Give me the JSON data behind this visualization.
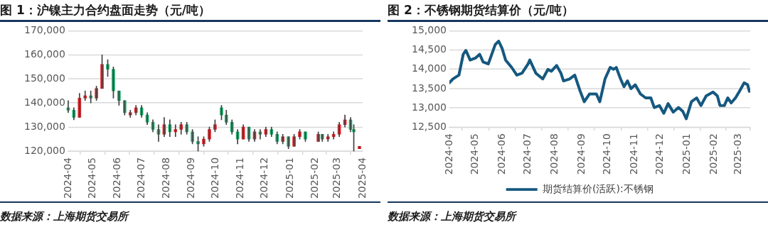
{
  "chart_data": [
    {
      "type": "candlestick",
      "title": "图 1：沪镍主力合约盘面走势（元/吨）",
      "annotations": [
        "数据来源：上海期货交易所"
      ],
      "x": [
        "2024-04-01",
        "2024-04-08",
        "2024-04-15",
        "2024-04-22",
        "2024-04-29",
        "2024-05-06",
        "2024-05-13",
        "2024-05-20",
        "2024-05-27",
        "2024-06-03",
        "2024-06-10",
        "2024-06-17",
        "2024-06-24",
        "2024-07-01",
        "2024-07-08",
        "2024-07-15",
        "2024-07-22",
        "2024-07-29",
        "2024-08-05",
        "2024-08-12",
        "2024-08-19",
        "2024-08-26",
        "2024-09-02",
        "2024-09-09",
        "2024-09-16",
        "2024-09-23",
        "2024-09-30",
        "2024-10-08",
        "2024-10-14",
        "2024-10-21",
        "2024-10-28",
        "2024-11-04",
        "2024-11-11",
        "2024-11-18",
        "2024-11-25",
        "2024-12-02",
        "2024-12-09",
        "2024-12-16",
        "2024-12-23",
        "2024-12-30",
        "2025-01-06",
        "2025-01-13",
        "2025-01-20",
        "2025-02-05",
        "2025-02-10",
        "2025-02-17",
        "2025-02-24",
        "2025-03-03",
        "2025-03-10",
        "2025-03-17",
        "2025-03-21",
        "2025-03-28"
      ],
      "ohlc": [
        [
          138000,
          141000,
          136000,
          137000
        ],
        [
          137000,
          138000,
          133000,
          134000
        ],
        [
          134000,
          144000,
          134000,
          142000
        ],
        [
          142000,
          145000,
          141000,
          143000
        ],
        [
          143000,
          145000,
          140000,
          142000
        ],
        [
          142000,
          147000,
          141000,
          146000
        ],
        [
          146000,
          160000,
          146000,
          156000
        ],
        [
          156000,
          158000,
          151000,
          154000
        ],
        [
          154000,
          155000,
          142000,
          145000
        ],
        [
          145000,
          145000,
          139000,
          141000
        ],
        [
          141000,
          141000,
          135000,
          136000
        ],
        [
          135000,
          137000,
          134000,
          136000
        ],
        [
          136000,
          139000,
          135000,
          138000
        ],
        [
          138000,
          139000,
          134000,
          135000
        ],
        [
          135000,
          136000,
          131000,
          132000
        ],
        [
          132000,
          133000,
          128000,
          129000
        ],
        [
          129000,
          131000,
          124000,
          127000
        ],
        [
          127000,
          134000,
          126000,
          131000
        ],
        [
          131000,
          133000,
          126000,
          128000
        ],
        [
          128000,
          131000,
          126000,
          129000
        ],
        [
          129000,
          132000,
          127000,
          131000
        ],
        [
          131000,
          132000,
          127000,
          128000
        ],
        [
          128000,
          129000,
          123000,
          124000
        ],
        [
          124000,
          126000,
          120000,
          123000
        ],
        [
          123000,
          126000,
          122000,
          125000
        ],
        [
          125000,
          130000,
          124000,
          129000
        ],
        [
          129000,
          133000,
          128000,
          131000
        ],
        [
          138000,
          139000,
          133000,
          135000
        ],
        [
          135000,
          137000,
          131000,
          132000
        ],
        [
          132000,
          133000,
          127000,
          128000
        ],
        [
          128000,
          129000,
          123000,
          125000
        ],
        [
          125000,
          131000,
          125000,
          130000
        ],
        [
          130000,
          130000,
          124000,
          125000
        ],
        [
          125000,
          129000,
          124000,
          128000
        ],
        [
          128000,
          129000,
          125000,
          127000
        ],
        [
          127000,
          130000,
          126000,
          129000
        ],
        [
          129000,
          130000,
          126000,
          127000
        ],
        [
          127000,
          128000,
          123000,
          124000
        ],
        [
          124000,
          127000,
          123000,
          126000
        ],
        [
          126000,
          126000,
          121000,
          122000
        ],
        [
          122000,
          127000,
          122000,
          126000
        ],
        [
          126000,
          129000,
          125000,
          128000
        ],
        [
          128000,
          128000,
          124000,
          125000
        ],
        [
          124000,
          128000,
          124000,
          127000
        ],
        [
          127000,
          127000,
          124000,
          125000
        ],
        [
          125000,
          127000,
          124000,
          126000
        ],
        [
          126000,
          128000,
          125000,
          127000
        ],
        [
          127000,
          132000,
          126000,
          131000
        ],
        [
          131000,
          135000,
          130000,
          133000
        ],
        [
          133000,
          134000,
          128000,
          129000
        ],
        [
          129000,
          131000,
          120000,
          128000
        ],
        [
          121000,
          122000,
          121000,
          122000
        ]
      ],
      "colors": [
        "#1fae6e",
        "#1fae6e",
        "#e0262b",
        "#e0262b",
        "#1fae6e",
        "#e0262b",
        "#e0262b",
        "#1fae6e",
        "#1fae6e",
        "#1fae6e",
        "#1fae6e",
        "#e0262b",
        "#e0262b",
        "#1fae6e",
        "#1fae6e",
        "#1fae6e",
        "#1fae6e",
        "#e0262b",
        "#1fae6e",
        "#e0262b",
        "#e0262b",
        "#1fae6e",
        "#1fae6e",
        "#1fae6e",
        "#e0262b",
        "#e0262b",
        "#e0262b",
        "#1fae6e",
        "#1fae6e",
        "#1fae6e",
        "#1fae6e",
        "#e0262b",
        "#1fae6e",
        "#e0262b",
        "#1fae6e",
        "#e0262b",
        "#1fae6e",
        "#1fae6e",
        "#e0262b",
        "#1fae6e",
        "#e0262b",
        "#e0262b",
        "#1fae6e",
        "#e0262b",
        "#1fae6e",
        "#e0262b",
        "#e0262b",
        "#e0262b",
        "#e0262b",
        "#1fae6e",
        "#1fae6e",
        "#e0262b"
      ],
      "xlim": [
        "2024-04-01",
        "2025-04-01"
      ],
      "xticks": [
        {
          "value": "2024-04-01",
          "label": "2024-04"
        },
        {
          "value": "2024-05-01",
          "label": "2024-05"
        },
        {
          "value": "2024-06-01",
          "label": "2024-06"
        },
        {
          "value": "2024-07-01",
          "label": "2024-07"
        },
        {
          "value": "2024-08-01",
          "label": "2024-08"
        },
        {
          "value": "2024-09-01",
          "label": "2024-09"
        },
        {
          "value": "2024-10-01",
          "label": "2024-10"
        },
        {
          "value": "2024-11-01",
          "label": "2024-11"
        },
        {
          "value": "2024-12-01",
          "label": "2024-12"
        },
        {
          "value": "2025-01-01",
          "label": "2025-01"
        },
        {
          "value": "2025-02-01",
          "label": "2025-02"
        },
        {
          "value": "2025-03-01",
          "label": "2025-03"
        },
        {
          "value": "2025-04-01",
          "label": "2025-04"
        }
      ],
      "ylim": [
        120000,
        170000
      ],
      "yticks": [
        {
          "value": 120000,
          "label": "120,000"
        },
        {
          "value": 130000,
          "label": "130,000"
        },
        {
          "value": 140000,
          "label": "140,000"
        },
        {
          "value": 150000,
          "label": "150,000"
        },
        {
          "value": 160000,
          "label": "160,000"
        },
        {
          "value": 170000,
          "label": "170,000"
        }
      ],
      "grid": "y",
      "legend": false
    },
    {
      "type": "line",
      "title": "图 2：不锈钢期货结算价（元/吨）",
      "annotations": [
        "数据来源：上海期货交易所"
      ],
      "series": [
        {
          "name": "期货结算价(活跃):不锈钢",
          "color": "#15587f",
          "x": [
            "2024-04-01",
            "2024-04-05",
            "2024-04-12",
            "2024-04-17",
            "2024-04-20",
            "2024-04-25",
            "2024-05-01",
            "2024-05-06",
            "2024-05-10",
            "2024-05-16",
            "2024-05-24",
            "2024-05-28",
            "2024-06-01",
            "2024-06-05",
            "2024-06-12",
            "2024-06-18",
            "2024-06-24",
            "2024-07-01",
            "2024-07-03",
            "2024-07-10",
            "2024-07-18",
            "2024-07-24",
            "2024-07-28",
            "2024-08-03",
            "2024-08-08",
            "2024-08-11",
            "2024-08-18",
            "2024-08-24",
            "2024-08-30",
            "2024-09-04",
            "2024-09-10",
            "2024-09-18",
            "2024-09-22",
            "2024-09-28",
            "2024-10-04",
            "2024-10-08",
            "2024-10-11",
            "2024-10-16",
            "2024-10-20",
            "2024-10-24",
            "2024-10-28",
            "2024-11-02",
            "2024-11-08",
            "2024-11-14",
            "2024-11-20",
            "2024-11-24",
            "2024-11-30",
            "2024-12-05",
            "2024-12-10",
            "2024-12-16",
            "2024-12-22",
            "2024-12-27",
            "2024-12-31",
            "2025-01-06",
            "2025-01-12",
            "2025-01-17",
            "2025-01-23",
            "2025-01-31",
            "2025-02-05",
            "2025-02-08",
            "2025-02-13",
            "2025-02-17",
            "2025-02-21",
            "2025-02-26",
            "2025-03-03",
            "2025-03-08",
            "2025-03-12",
            "2025-03-14"
          ],
          "values": [
            13650,
            13750,
            13850,
            14390,
            14490,
            14240,
            14290,
            14390,
            14190,
            14140,
            14640,
            14730,
            14540,
            14240,
            14050,
            13850,
            13900,
            14140,
            14240,
            13900,
            13750,
            14000,
            13950,
            14100,
            13900,
            13700,
            13750,
            13850,
            13450,
            13160,
            13360,
            13360,
            13160,
            13750,
            14050,
            14000,
            14050,
            13750,
            13550,
            13700,
            13500,
            13600,
            13360,
            13260,
            13260,
            13010,
            13060,
            12860,
            13110,
            12890,
            13010,
            12910,
            12720,
            13160,
            13260,
            13060,
            13310,
            13410,
            13310,
            13060,
            13060,
            13260,
            13130,
            13260,
            13450,
            13650,
            13600,
            13430
          ]
        }
      ],
      "xlim": [
        "2024-04-01",
        "2025-03-15"
      ],
      "xticks": [
        {
          "value": "2024-04-01",
          "label": "2024-04"
        },
        {
          "value": "2024-05-01",
          "label": "2024-05"
        },
        {
          "value": "2024-06-01",
          "label": "2024-06"
        },
        {
          "value": "2024-07-01",
          "label": "2024-07"
        },
        {
          "value": "2024-08-01",
          "label": "2024-08"
        },
        {
          "value": "2024-09-01",
          "label": "2024-09"
        },
        {
          "value": "2024-10-01",
          "label": "2024-10"
        },
        {
          "value": "2024-11-01",
          "label": "2024-11"
        },
        {
          "value": "2024-12-01",
          "label": "2024-12"
        },
        {
          "value": "2025-01-01",
          "label": "2025-01"
        },
        {
          "value": "2025-02-01",
          "label": "2025-02"
        },
        {
          "value": "2025-03-01",
          "label": "2025-03"
        }
      ],
      "ylim": [
        12500,
        15000
      ],
      "yticks": [
        {
          "value": 12500,
          "label": "12,500"
        },
        {
          "value": 13000,
          "label": "13,000"
        },
        {
          "value": 13500,
          "label": "13,500"
        },
        {
          "value": 14000,
          "label": "14,000"
        },
        {
          "value": 14500,
          "label": "14,500"
        },
        {
          "value": 15000,
          "label": "15,000"
        }
      ],
      "grid": "y",
      "legend": "bottom",
      "marker": "none",
      "line_style": "solid"
    }
  ]
}
